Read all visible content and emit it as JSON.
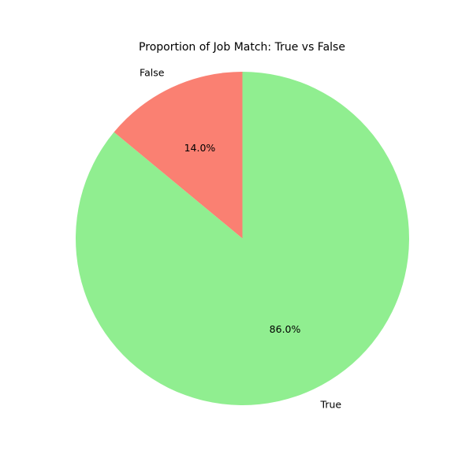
{
  "chart_data": {
    "type": "pie",
    "title": "Proportion of Job Match: True vs False",
    "slices": [
      {
        "label": "False",
        "value": 14.0,
        "percent_label": "14.0%",
        "color": "#fa8072"
      },
      {
        "label": "True",
        "value": 86.0,
        "percent_label": "86.0%",
        "color": "#90ee90"
      }
    ],
    "start_angle_deg": 90,
    "direction": "counterclockwise"
  }
}
